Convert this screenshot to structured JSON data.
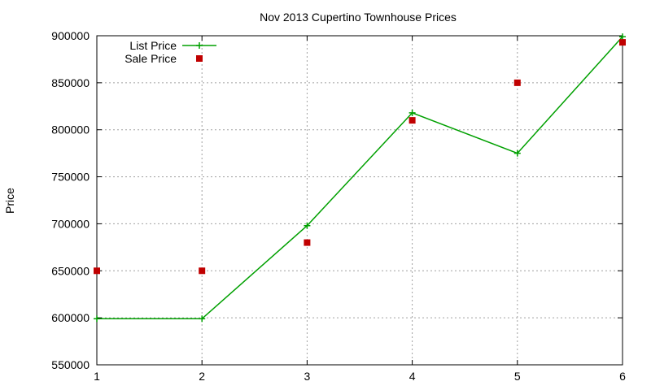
{
  "chart_data": {
    "type": "line",
    "title": "Nov 2013 Cupertino Townhouse Prices",
    "xlabel": "",
    "ylabel": "Price",
    "x": [
      1,
      2,
      3,
      4,
      5,
      6
    ],
    "xlim": [
      1,
      6
    ],
    "ylim": [
      550000,
      900000
    ],
    "xticks": [
      "1",
      "2",
      "3",
      "4",
      "5",
      "6"
    ],
    "yticks": [
      "550000",
      "600000",
      "650000",
      "700000",
      "750000",
      "800000",
      "850000",
      "900000"
    ],
    "grid": true,
    "legend_position": "top-left",
    "series": [
      {
        "name": "List Price",
        "style": "linespoints",
        "color": "#00a000",
        "values": [
          599000,
          599000,
          698000,
          818000,
          775000,
          899000
        ]
      },
      {
        "name": "Sale Price",
        "style": "points",
        "color": "#c00000",
        "values": [
          650000,
          650000,
          680000,
          810000,
          850000,
          893000
        ]
      }
    ]
  }
}
